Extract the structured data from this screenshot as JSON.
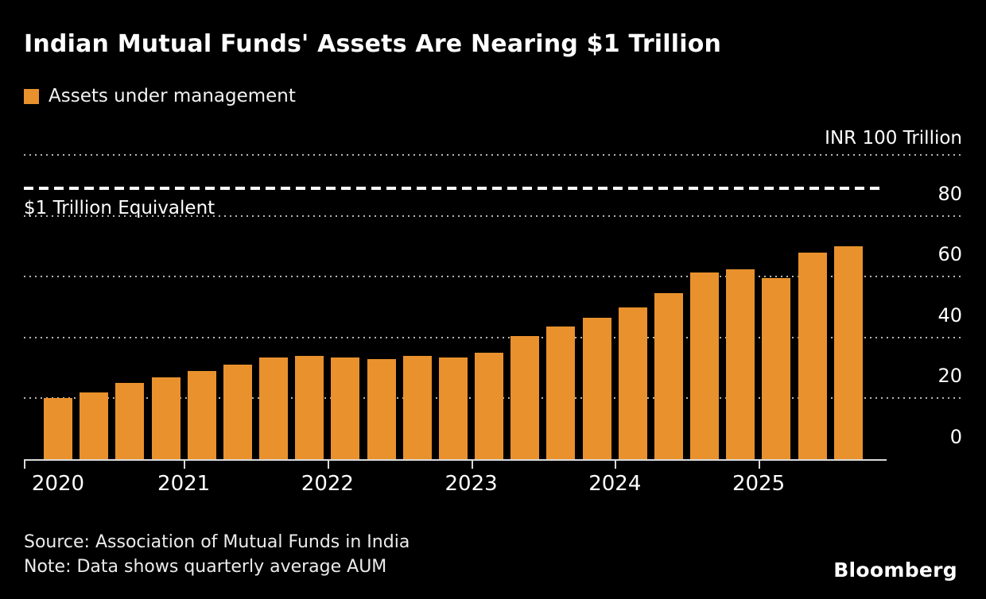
{
  "header": {
    "title": "Indian Mutual Funds' Assets Are Nearing $1 Trillion",
    "legend_label": "Assets under management"
  },
  "axis": {
    "unit_label": "INR 100 Trillion",
    "y_ticks": [
      0,
      20,
      40,
      60,
      80
    ],
    "x_ticks": [
      "2020",
      "2021",
      "2022",
      "2023",
      "2024",
      "2025"
    ]
  },
  "reference_line": {
    "label": "$1 Trillion Equivalent",
    "value": 88.5
  },
  "footer": {
    "source": "Source: Association of Mutual Funds in India",
    "note": "Note: Data shows quarterly average AUM",
    "brand": "Bloomberg"
  },
  "colors": {
    "background": "#000000",
    "bar": "#E8912D",
    "text": "#FFFFFF",
    "gridline": "#B5B5B5",
    "reference_line": "#FFFFFF",
    "axis_line": "#D9D9D9"
  },
  "chart_data": {
    "type": "bar",
    "title": "Indian Mutual Funds' Assets Are Nearing $1 Trillion",
    "series_name": "Assets under management",
    "unit": "INR trillion",
    "categories": [
      "2020 Q1",
      "2020 Q2",
      "2020 Q3",
      "2020 Q4",
      "2021 Q1",
      "2021 Q2",
      "2021 Q3",
      "2021 Q4",
      "2022 Q1",
      "2022 Q2",
      "2022 Q3",
      "2022 Q4",
      "2023 Q1",
      "2023 Q2",
      "2023 Q3",
      "2023 Q4",
      "2024 Q1",
      "2024 Q2",
      "2024 Q3",
      "2024 Q4",
      "2025 Q1",
      "2025 Q2",
      "2025 Q3"
    ],
    "values": [
      20,
      22,
      25,
      27,
      29,
      31,
      33.5,
      34,
      33.5,
      33,
      34,
      33.5,
      35,
      40.5,
      43.5,
      46.5,
      50,
      54.5,
      61.5,
      62.5,
      59.5,
      68,
      70
    ],
    "ylim": [
      0,
      100
    ],
    "gridlines": [
      20,
      40,
      60,
      80,
      100
    ],
    "grid": "dotted horizontal",
    "legend_position": "top-left",
    "reference_line": {
      "label": "$1 Trillion Equivalent",
      "value": 88.5
    },
    "x_tick_years": [
      "2020",
      "2021",
      "2022",
      "2023",
      "2024",
      "2025"
    ],
    "bars_per_year": 4
  }
}
